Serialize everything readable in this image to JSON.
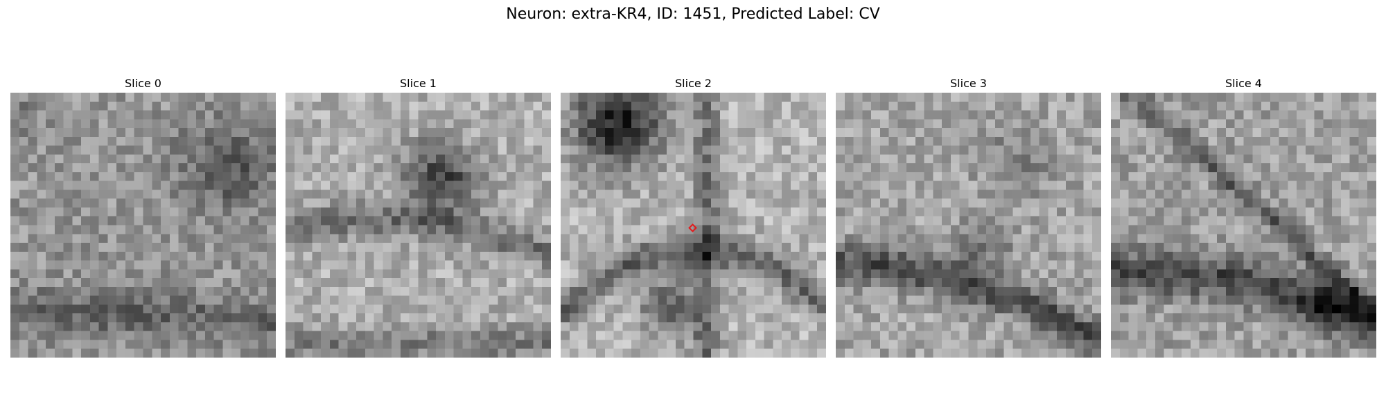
{
  "figure": {
    "suptitle": "Neuron: extra-KR4, ID: 1451, Predicted Label: CV",
    "marker_color": "#e31a1c",
    "colormap": "gray"
  },
  "slices": [
    {
      "title": "Slice 0"
    },
    {
      "title": "Slice 1"
    },
    {
      "title": "Slice 2",
      "has_marker": true
    },
    {
      "title": "Slice 3"
    },
    {
      "title": "Slice 4"
    }
  ]
}
